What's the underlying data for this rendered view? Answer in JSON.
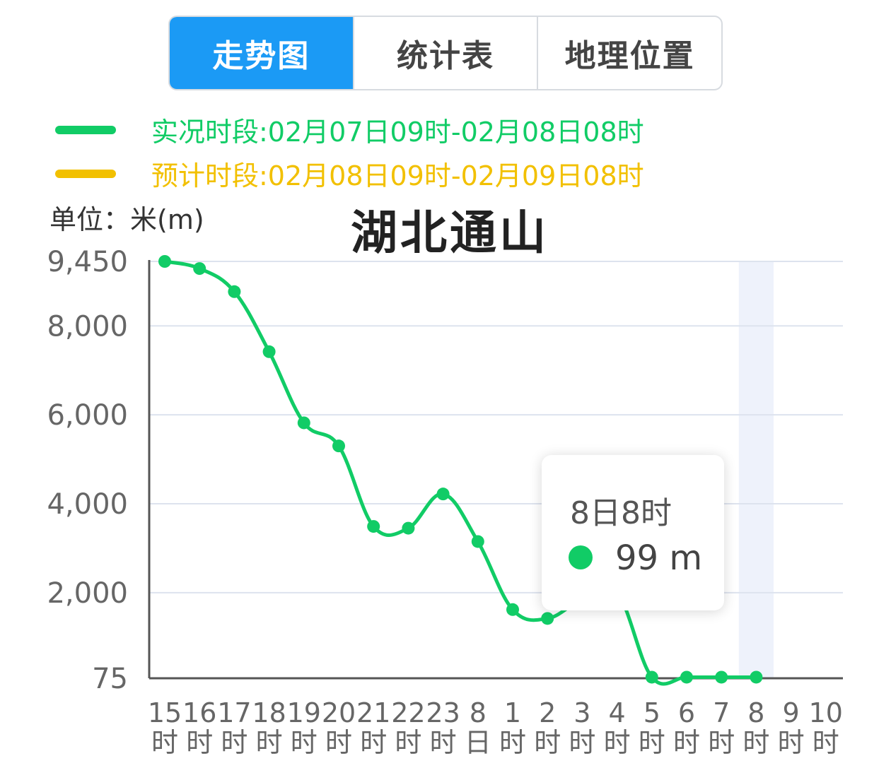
{
  "tabs": [
    {
      "label": "走势图",
      "active": true
    },
    {
      "label": "统计表",
      "active": false
    },
    {
      "label": "地理位置",
      "active": false
    }
  ],
  "legend": {
    "observed": {
      "label": "实况时段:02月07日09时-02月08日08时",
      "color": "#11cc66"
    },
    "forecast": {
      "label": "预计时段:02月08日09时-02月09日08时",
      "color": "#f2c000"
    }
  },
  "unit_label": "单位：米(m)",
  "title": "湖北通山",
  "tooltip": {
    "title": "8日8时",
    "value": "99 m"
  },
  "chart_data": {
    "type": "line",
    "title": "湖北通山",
    "ylabel": "单位：米(m)",
    "xlabel": "",
    "y_ticks": [
      "75",
      "2,000",
      "4,000",
      "6,000",
      "8,000",
      "9,450"
    ],
    "ylim": [
      75,
      9450
    ],
    "categories": [
      "15时",
      "16时",
      "17时",
      "18时",
      "19时",
      "20时",
      "21时",
      "22时",
      "23时",
      "8日",
      "1时",
      "2时",
      "3时",
      "4时",
      "5时",
      "6时",
      "7时",
      "8时",
      "9时",
      "10时"
    ],
    "series": [
      {
        "color": "#11cc66",
        "values": [
          9450,
          9290,
          8770,
          7420,
          5820,
          5300,
          3490,
          3450,
          4220,
          3150,
          1620,
          1420,
          1850,
          2000,
          99,
          99,
          99,
          99,
          null,
          null
        ]
      }
    ],
    "highlight_category": "8时",
    "grid": true,
    "legend_position": "top-left"
  }
}
